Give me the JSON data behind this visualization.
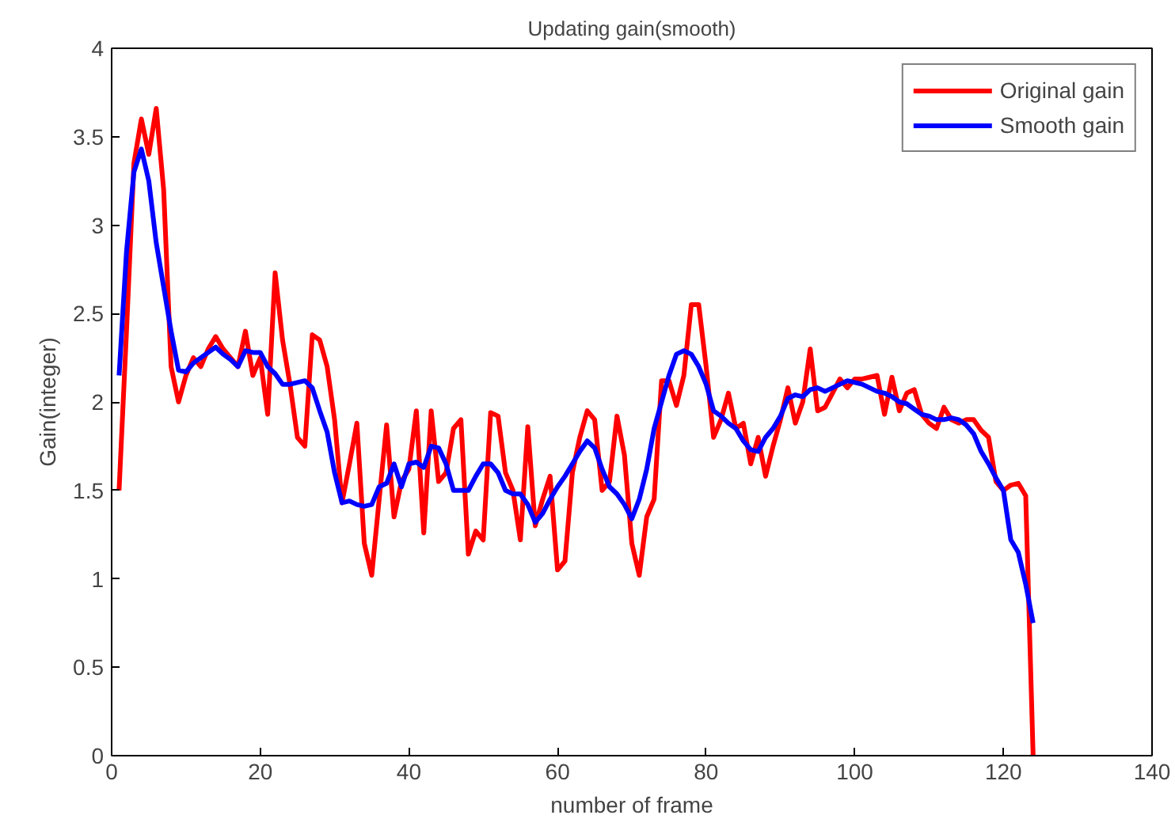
{
  "chart_data": {
    "type": "line",
    "title": "Updating gain(smooth)",
    "xlabel": "number of frame",
    "ylabel": "Gain(integer)",
    "x": [
      1,
      2,
      3,
      4,
      5,
      6,
      7,
      8,
      9,
      10,
      11,
      12,
      13,
      14,
      15,
      16,
      17,
      18,
      19,
      20,
      21,
      22,
      23,
      24,
      25,
      26,
      27,
      28,
      29,
      30,
      31,
      32,
      33,
      34,
      35,
      36,
      37,
      38,
      39,
      40,
      41,
      42,
      43,
      44,
      45,
      46,
      47,
      48,
      49,
      50,
      51,
      52,
      53,
      54,
      55,
      56,
      57,
      58,
      59,
      60,
      61,
      62,
      63,
      64,
      65,
      66,
      67,
      68,
      69,
      70,
      71,
      72,
      73,
      74,
      75,
      76,
      77,
      78,
      79,
      80,
      81,
      82,
      83,
      84,
      85,
      86,
      87,
      88,
      89,
      90,
      91,
      92,
      93,
      94,
      95,
      96,
      97,
      98,
      99,
      100,
      101,
      102,
      103,
      104,
      105,
      106,
      107,
      108,
      109,
      110,
      111,
      112,
      113,
      114,
      115,
      116,
      117,
      118,
      119,
      120,
      121,
      122,
      123,
      124
    ],
    "series": [
      {
        "name": "Original gain",
        "color": "#ff0000",
        "values": [
          1.5,
          2.4,
          3.35,
          3.6,
          3.4,
          3.66,
          3.2,
          2.2,
          2.0,
          2.15,
          2.25,
          2.2,
          2.3,
          2.37,
          2.3,
          2.25,
          2.2,
          2.4,
          2.15,
          2.25,
          1.93,
          2.73,
          2.35,
          2.1,
          1.8,
          1.75,
          2.38,
          2.35,
          2.2,
          1.9,
          1.43,
          1.65,
          1.88,
          1.2,
          1.02,
          1.45,
          1.87,
          1.35,
          1.55,
          1.62,
          1.95,
          1.26,
          1.95,
          1.55,
          1.6,
          1.85,
          1.9,
          1.14,
          1.27,
          1.22,
          1.94,
          1.92,
          1.6,
          1.5,
          1.22,
          1.86,
          1.3,
          1.45,
          1.58,
          1.05,
          1.1,
          1.6,
          1.8,
          1.95,
          1.9,
          1.5,
          1.55,
          1.92,
          1.7,
          1.2,
          1.02,
          1.35,
          1.45,
          2.12,
          2.12,
          1.98,
          2.15,
          2.55,
          2.55,
          2.2,
          1.8,
          1.9,
          2.05,
          1.85,
          1.88,
          1.65,
          1.8,
          1.58,
          1.75,
          1.9,
          2.08,
          1.88,
          2.0,
          2.3,
          1.95,
          1.97,
          2.05,
          2.13,
          2.08,
          2.13,
          2.13,
          2.14,
          2.15,
          1.93,
          2.14,
          1.95,
          2.05,
          2.07,
          1.93,
          1.88,
          1.85,
          1.97,
          1.9,
          1.88,
          1.9,
          1.9,
          1.84,
          1.8,
          1.55,
          1.5,
          1.53,
          1.54,
          1.47,
          0
        ]
      },
      {
        "name": "Smooth gain",
        "color": "#0000ff",
        "values": [
          2.15,
          2.85,
          3.3,
          3.43,
          3.25,
          2.9,
          2.65,
          2.4,
          2.18,
          2.17,
          2.22,
          2.25,
          2.28,
          2.31,
          2.27,
          2.24,
          2.2,
          2.29,
          2.28,
          2.28,
          2.2,
          2.16,
          2.1,
          2.1,
          2.11,
          2.12,
          2.08,
          1.95,
          1.83,
          1.6,
          1.43,
          1.44,
          1.42,
          1.41,
          1.42,
          1.52,
          1.54,
          1.65,
          1.52,
          1.65,
          1.66,
          1.63,
          1.75,
          1.74,
          1.65,
          1.5,
          1.5,
          1.5,
          1.58,
          1.65,
          1.65,
          1.6,
          1.5,
          1.48,
          1.48,
          1.42,
          1.32,
          1.37,
          1.45,
          1.52,
          1.58,
          1.65,
          1.72,
          1.78,
          1.74,
          1.62,
          1.52,
          1.48,
          1.42,
          1.34,
          1.45,
          1.62,
          1.85,
          2.0,
          2.15,
          2.27,
          2.29,
          2.27,
          2.2,
          2.1,
          1.95,
          1.92,
          1.88,
          1.85,
          1.78,
          1.73,
          1.72,
          1.8,
          1.85,
          1.92,
          2.02,
          2.04,
          2.03,
          2.07,
          2.08,
          2.06,
          2.08,
          2.1,
          2.12,
          2.11,
          2.1,
          2.08,
          2.06,
          2.05,
          2.03,
          2.0,
          1.99,
          1.96,
          1.93,
          1.92,
          1.9,
          1.9,
          1.91,
          1.9,
          1.87,
          1.82,
          1.72,
          1.65,
          1.57,
          1.5,
          1.22,
          1.15,
          0.97,
          0.75
        ]
      }
    ],
    "xlim": [
      0,
      140
    ],
    "xticks": [
      0,
      20,
      40,
      60,
      80,
      100,
      120,
      140
    ],
    "ylim": [
      0,
      4
    ],
    "yticks": [
      0,
      0.5,
      1,
      1.5,
      2,
      2.5,
      3,
      3.5,
      4
    ],
    "grid": false,
    "legend": "top right",
    "line_style": "solid"
  }
}
